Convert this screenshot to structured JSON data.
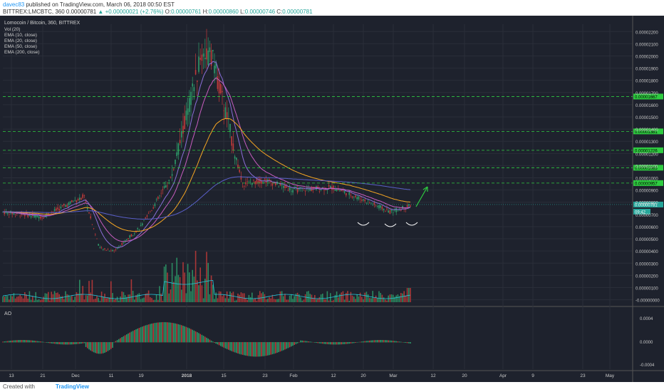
{
  "header": {
    "user": "davec83",
    "published": "published on TradingView.com, March 06, 2018 00:50 EST",
    "symbol": "BITTREX:LMCBTC, 360",
    "price": "0.00000781",
    "change": "▲ +0.00000021 (+2.76%)",
    "o_label": "O:",
    "o_value": "0.00000761",
    "h_label": "H:",
    "h_value": "0.00000860",
    "l_label": "L:",
    "l_value": "0.00000746",
    "c_label": "C:",
    "c_value": "0.00000781"
  },
  "legend": {
    "title": "Lomocoin / Bitcoin, 360, BITTREX",
    "items": [
      "Vol (20)",
      "EMA (10, close)",
      "EMA (20, close)",
      "EMA (50, close)",
      "EMA (200, close)"
    ]
  },
  "ao_panel": {
    "label": "AO",
    "ticks": [
      "0.0004",
      "0.0000",
      "-0.0004"
    ]
  },
  "footer": {
    "created": "Created with",
    "brand": "TradingView"
  },
  "colors": {
    "background": "#1e222d",
    "grid": "#2a2e39",
    "up": "#c23a3a",
    "down": "#e06060",
    "ema10": "#8b6ed8",
    "ema20": "#c85dc0",
    "ema50": "#f5a623",
    "ema200": "#5a5fc8",
    "level": "#2ecc40",
    "arrow": "#2ecc40",
    "vol_ma": "#26c6da"
  },
  "chart_data": {
    "type": "candlestick",
    "title": "Lomocoin / Bitcoin, 360, BITTREX",
    "y_ticks": [
      "0.00002200",
      "0.00002100",
      "0.00002000",
      "0.00001900",
      "0.00001800",
      "0.00001700",
      "0.00001600",
      "0.00001500",
      "0.00001400",
      "0.00001300",
      "0.00001200",
      "0.00001100",
      "0.00001000",
      "0.00000900",
      "0.00000800",
      "0.00000700",
      "0.00000600",
      "0.00000500",
      "0.00000400",
      "0.00000300",
      "0.00000200",
      "0.00000100",
      "-0.00000000"
    ],
    "x_ticks": [
      "13",
      "21",
      "Dec",
      "11",
      "19",
      "2018",
      "15",
      "23",
      "Feb",
      "12",
      "20",
      "Mar",
      "12",
      "20",
      "Apr",
      "9",
      "23",
      "May"
    ],
    "ylim": [
      -0.0,
      2.26e-05
    ],
    "levels": [
      {
        "label": "0.00001667",
        "value": 1.667e-05
      },
      {
        "label": "0.00001381",
        "value": 1.381e-05
      },
      {
        "label": "0.00001226",
        "value": 1.226e-05
      },
      {
        "label": "0.00001083",
        "value": 1.083e-05
      },
      {
        "label": "0.00000957",
        "value": 9.57e-06
      }
    ],
    "last_price_label": "0.00000781",
    "countdown_label": "09:42",
    "series_close_approx": [
      {
        "x": "Nov 13",
        "y": 7.2e-06
      },
      {
        "x": "Nov 21",
        "y": 6.8e-06
      },
      {
        "x": "Nov 28",
        "y": 8.5e-06
      },
      {
        "x": "Dec 5",
        "y": 4.2e-06
      },
      {
        "x": "Dec 11",
        "y": 4e-06
      },
      {
        "x": "Dec 19",
        "y": 6e-06
      },
      {
        "x": "Dec 26",
        "y": 1e-05
      },
      {
        "x": "Jan 1",
        "y": 1.65e-05
      },
      {
        "x": "Jan 5",
        "y": 2.05e-05
      },
      {
        "x": "Jan 9",
        "y": 1.95e-05
      },
      {
        "x": "Jan 13",
        "y": 1.5e-05
      },
      {
        "x": "Jan 17",
        "y": 9.5e-06
      },
      {
        "x": "Jan 23",
        "y": 9.8e-06
      },
      {
        "x": "Feb 1",
        "y": 9e-06
      },
      {
        "x": "Feb 12",
        "y": 9.2e-06
      },
      {
        "x": "Feb 20",
        "y": 8.2e-06
      },
      {
        "x": "Feb 28",
        "y": 7.2e-06
      },
      {
        "x": "Mar 6",
        "y": 7.8e-06
      }
    ]
  }
}
